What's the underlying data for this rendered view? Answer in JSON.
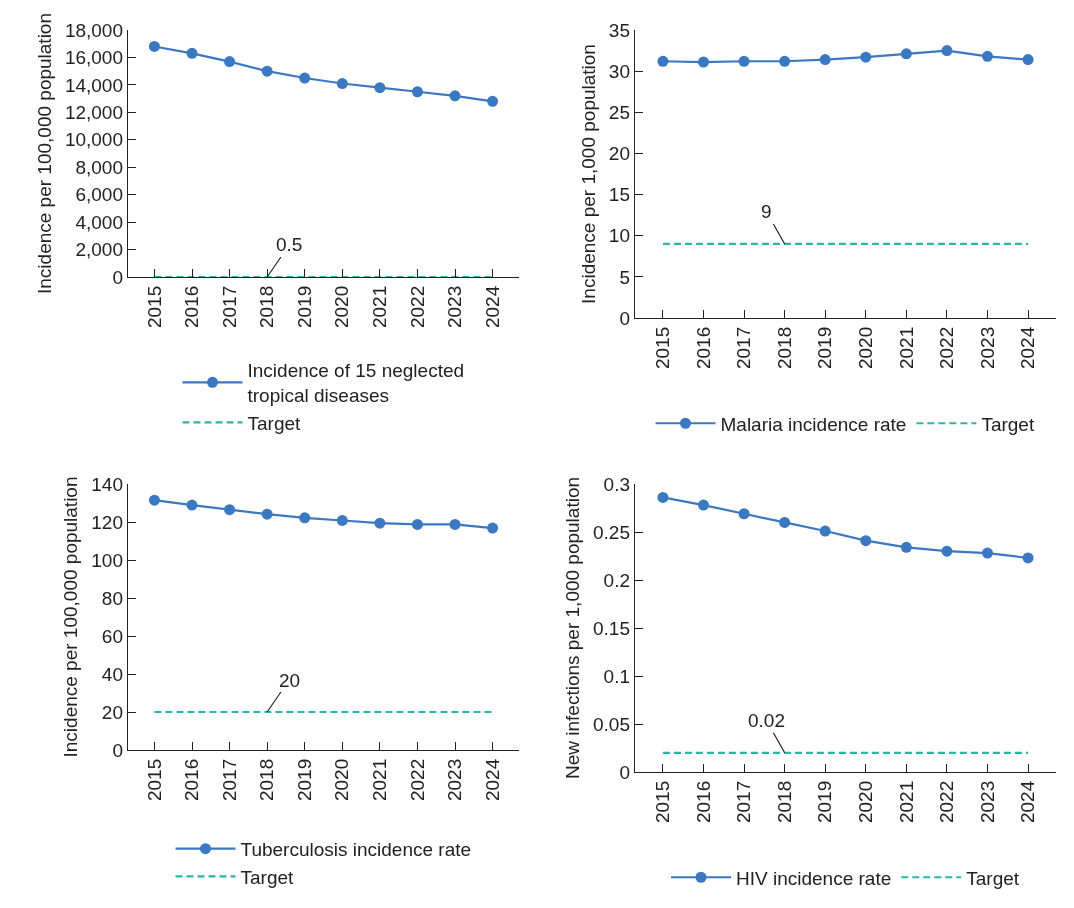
{
  "chart_data": [
    {
      "type": "line",
      "ylabel": "Incidence per 100,000 population",
      "categories": [
        "2015",
        "2016",
        "2017",
        "2018",
        "2019",
        "2020",
        "2021",
        "2022",
        "2023",
        "2024"
      ],
      "series": [
        {
          "name": "Incidence of 15 neglected tropical diseases",
          "color": "#3a78c2",
          "marker": "circle",
          "line_style": "solid",
          "values": [
            16800,
            16300,
            15700,
            15000,
            14500,
            14100,
            13800,
            13500,
            13200,
            12800
          ]
        },
        {
          "name": "Target",
          "color": "#2bb5a5",
          "marker": "none",
          "line_style": "dashed",
          "values": [
            0.5,
            0.5,
            0.5,
            0.5,
            0.5,
            0.5,
            0.5,
            0.5,
            0.5,
            0.5
          ]
        }
      ],
      "ylim": [
        0,
        18000
      ],
      "yticks": [
        0,
        {
          "value": 2000,
          "label": "2,000"
        },
        {
          "value": 4000,
          "label": "4,000"
        },
        {
          "value": 6000,
          "label": "6,000"
        },
        {
          "value": 8000,
          "label": "8,000"
        },
        {
          "value": 10000,
          "label": "10,000"
        },
        {
          "value": 12000,
          "label": "12,000"
        },
        {
          "value": 14000,
          "label": "14,000"
        },
        {
          "value": 16000,
          "label": "16,000"
        },
        {
          "value": 18000,
          "label": "18,000"
        }
      ],
      "annotations": [
        {
          "text": "0.5",
          "x": "2018",
          "y": 0.5
        }
      ],
      "grid": false,
      "legend": "bottom"
    },
    {
      "type": "line",
      "ylabel": "Incidence per 1,000 population",
      "categories": [
        "2015",
        "2016",
        "2017",
        "2018",
        "2019",
        "2020",
        "2021",
        "2022",
        "2023",
        "2024"
      ],
      "series": [
        {
          "name": "Malaria incidence rate",
          "color": "#3a78c2",
          "marker": "circle",
          "line_style": "solid",
          "values": [
            31.2,
            31.1,
            31.2,
            31.2,
            31.4,
            31.7,
            32.1,
            32.5,
            31.8,
            31.4
          ]
        },
        {
          "name": "Target",
          "color": "#2bb5a5",
          "marker": "none",
          "line_style": "dashed",
          "values": [
            9,
            9,
            9,
            9,
            9,
            9,
            9,
            9,
            9,
            9
          ]
        }
      ],
      "ylim": [
        0,
        35
      ],
      "yticks": [
        0,
        5,
        10,
        15,
        20,
        25,
        30,
        35
      ],
      "annotations": [
        {
          "text": "9",
          "x": "2018",
          "y": 9
        }
      ],
      "grid": false,
      "legend": "bottom"
    },
    {
      "type": "line",
      "ylabel": "Incidence per 100,000 population",
      "categories": [
        "2015",
        "2016",
        "2017",
        "2018",
        "2019",
        "2020",
        "2021",
        "2022",
        "2023",
        "2024"
      ],
      "series": [
        {
          "name": "Tuberculosis incidence rate",
          "color": "#3a78c2",
          "marker": "circle",
          "line_style": "solid",
          "values": [
            131.5,
            128.9,
            126.5,
            124.1,
            122.2,
            120.8,
            119.4,
            118.7,
            118.7,
            116.8
          ]
        },
        {
          "name": "Target",
          "color": "#2bb5a5",
          "marker": "none",
          "line_style": "dashed",
          "values": [
            20,
            20,
            20,
            20,
            20,
            20,
            20,
            20,
            20,
            20
          ]
        }
      ],
      "ylim": [
        0,
        140
      ],
      "yticks": [
        0,
        20,
        40,
        60,
        80,
        100,
        120,
        140
      ],
      "annotations": [
        {
          "text": "20",
          "x": "2018",
          "y": 20
        }
      ],
      "grid": false,
      "legend": "bottom"
    },
    {
      "type": "line",
      "ylabel": "New infections per 1,000 population",
      "categories": [
        "2015",
        "2016",
        "2017",
        "2018",
        "2019",
        "2020",
        "2021",
        "2022",
        "2023",
        "2024"
      ],
      "series": [
        {
          "name": "HIV incidence rate",
          "color": "#3a78c2",
          "marker": "circle",
          "line_style": "solid",
          "values": [
            0.286,
            0.278,
            0.269,
            0.26,
            0.251,
            0.241,
            0.234,
            0.23,
            0.228,
            0.223
          ]
        },
        {
          "name": "Target",
          "color": "#2bb5a5",
          "marker": "none",
          "line_style": "dashed",
          "values": [
            0.02,
            0.02,
            0.02,
            0.02,
            0.02,
            0.02,
            0.02,
            0.02,
            0.02,
            0.02
          ]
        }
      ],
      "ylim": [
        0,
        0.3
      ],
      "yticks": [
        0,
        0.05,
        0.1,
        0.15,
        0.2,
        0.25,
        0.3
      ],
      "annotations": [
        {
          "text": "0.02",
          "x": "2018",
          "y": 0.02
        }
      ],
      "grid": false,
      "legend": "bottom"
    }
  ]
}
